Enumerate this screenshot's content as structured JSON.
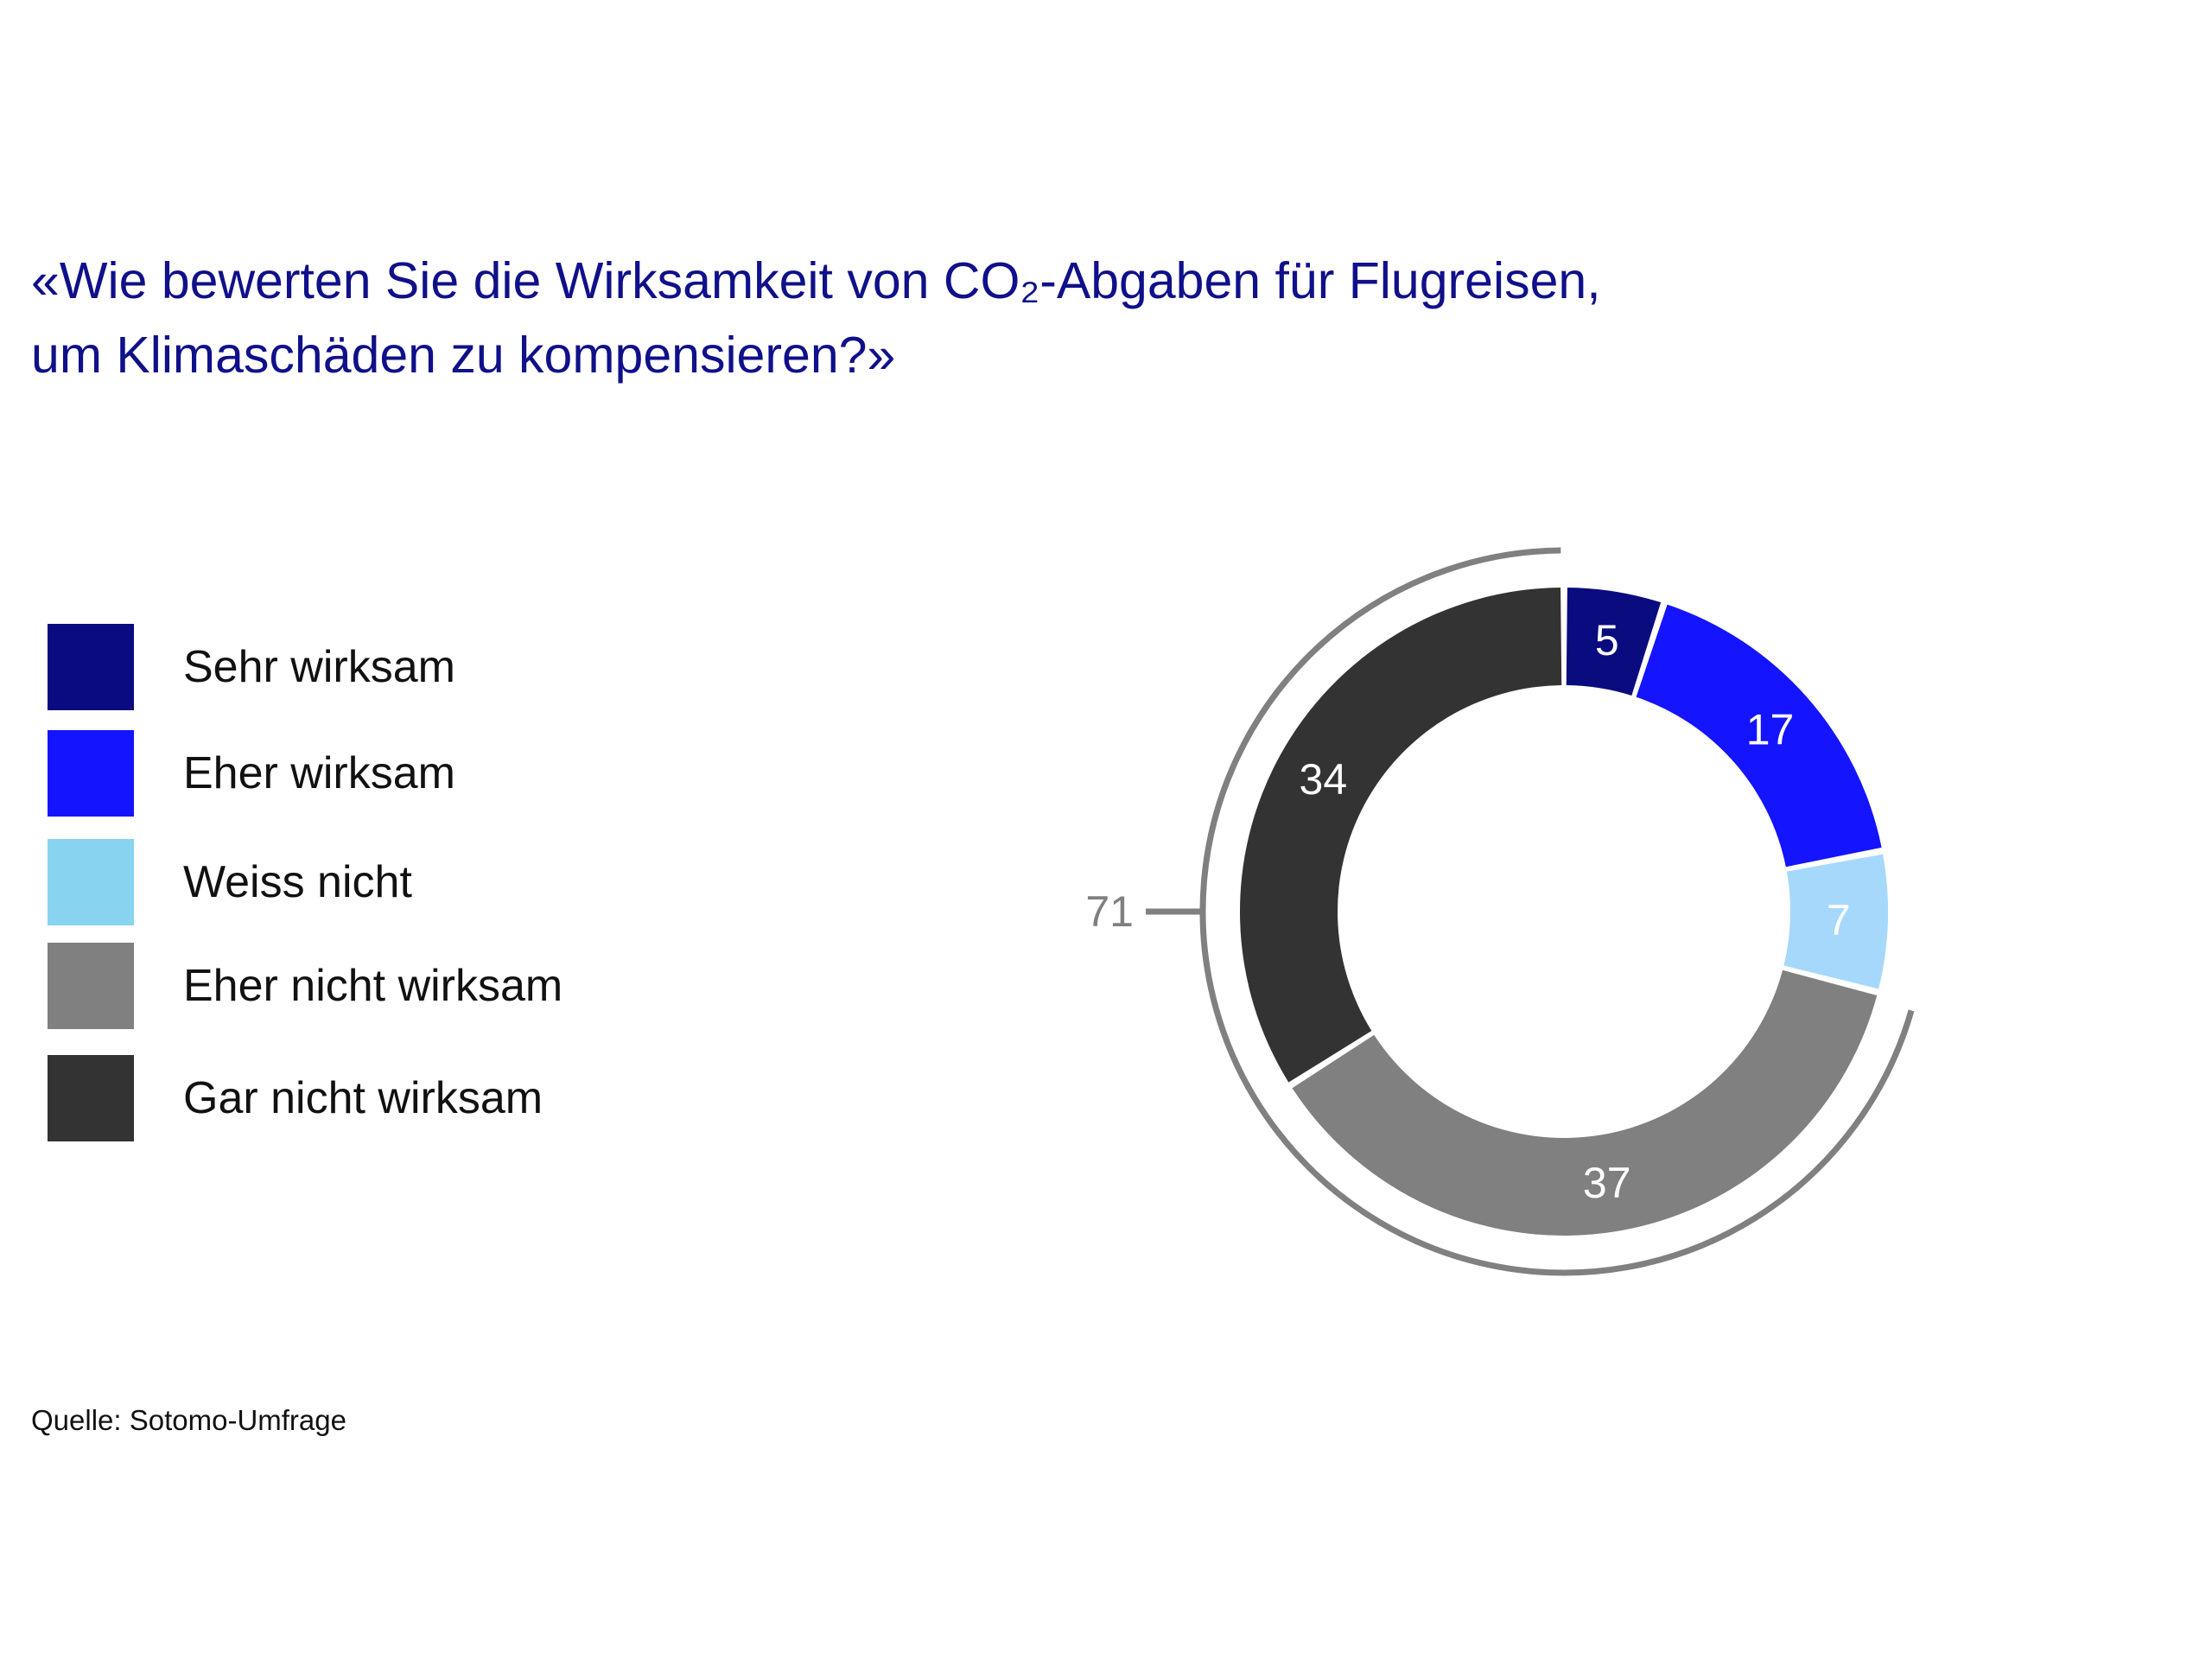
{
  "title_lines": [
    "«Wie bewerten Sie die Wirksamkeit von CO₂-Abgaben für Flugreisen,",
    "um Klimaschäden zu kompensieren?»"
  ],
  "source": "Quelle: Sotomo-Umfrage",
  "chart_data": {
    "type": "pie",
    "variant": "donut",
    "title": "«Wie bewerten Sie die Wirksamkeit von CO₂-Abgaben für Flugreisen, um Klimaschäden zu kompensieren?»",
    "unit": "%",
    "legend_placement": "left",
    "slices": [
      {
        "label": "Sehr wirksam",
        "value": 5,
        "color": "#0b0b80"
      },
      {
        "label": "Eher wirksam",
        "value": 17,
        "color": "#1414ff"
      },
      {
        "label": "Weiss nicht",
        "value": 7,
        "color": "#a6d8fb"
      },
      {
        "label": "Eher nicht wirksam",
        "value": 37,
        "color": "#808080"
      },
      {
        "label": "Gar nicht wirksam",
        "value": 34,
        "color": "#333333"
      }
    ],
    "legend_swatch_colors": [
      "#0b0b80",
      "#1414ff",
      "#87d3f0",
      "#808080",
      "#333333"
    ],
    "group_annotation": {
      "value": 71,
      "covers": [
        "Eher nicht wirksam",
        "Gar nicht wirksam"
      ],
      "color": "#808080"
    }
  }
}
